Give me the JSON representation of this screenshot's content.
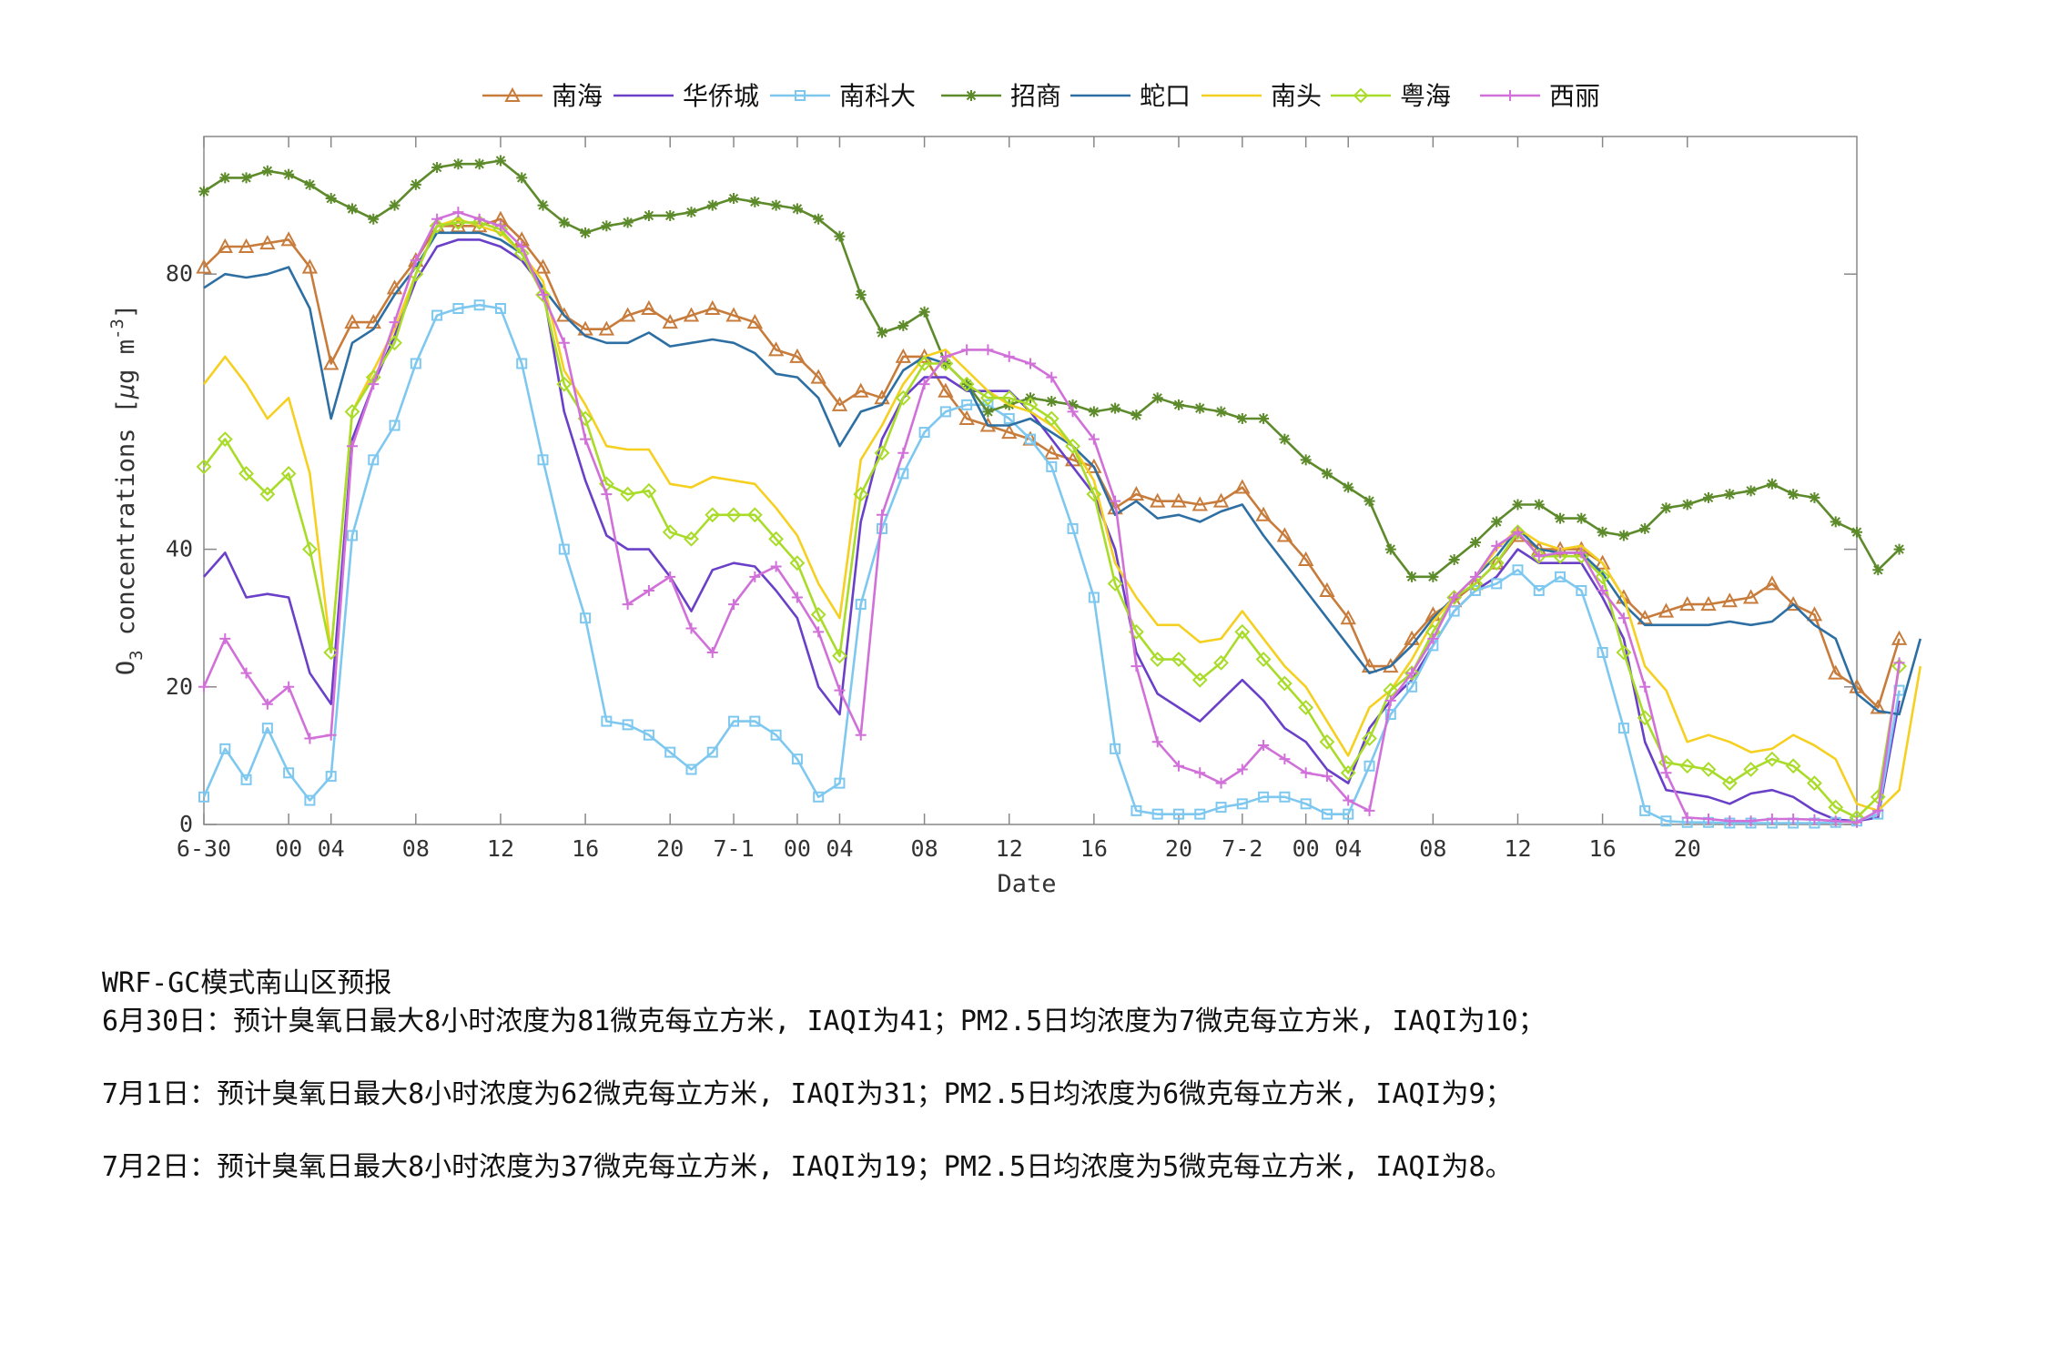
{
  "chart_data": {
    "type": "line",
    "title": "",
    "xlabel": "Date",
    "ylabel": "O3 concentrations [μg m-3]",
    "ylabel_parts": {
      "o": "O",
      "sub": "3",
      "mid": " concentrations [",
      "mu": "μ",
      "g": "g m",
      "sup": "-3",
      "end": "]"
    },
    "ylim": [
      0,
      100
    ],
    "yticks": [
      0,
      20,
      40,
      80
    ],
    "xlim": [
      0,
      78
    ],
    "xticks": [
      {
        "x": 0,
        "label": "6-30"
      },
      {
        "x": 4,
        "label": "00"
      },
      {
        "x": 6,
        "label": "04"
      },
      {
        "x": 10,
        "label": "08"
      },
      {
        "x": 14,
        "label": "12"
      },
      {
        "x": 18,
        "label": "16"
      },
      {
        "x": 22,
        "label": "20"
      },
      {
        "x": 25,
        "label": "7-1"
      },
      {
        "x": 28,
        "label": "00"
      },
      {
        "x": 30,
        "label": "04"
      },
      {
        "x": 34,
        "label": "08"
      },
      {
        "x": 38,
        "label": "12"
      },
      {
        "x": 42,
        "label": "16"
      },
      {
        "x": 46,
        "label": "20"
      },
      {
        "x": 49,
        "label": "7-2"
      },
      {
        "x": 52,
        "label": "00"
      },
      {
        "x": 54,
        "label": "04"
      },
      {
        "x": 58,
        "label": "08"
      },
      {
        "x": 62,
        "label": "12"
      },
      {
        "x": 66,
        "label": "16"
      },
      {
        "x": 70,
        "label": "20"
      }
    ],
    "grid": false,
    "legend_position": "top",
    "series": [
      {
        "name": "南海",
        "color": "#c87c3c",
        "marker": "triangle",
        "values": [
          81,
          84,
          84,
          84.5,
          85,
          81,
          67,
          73,
          73,
          78,
          82,
          87,
          87,
          87,
          88,
          85,
          81,
          74,
          72,
          72,
          74,
          75,
          73,
          74,
          75,
          74,
          73,
          69,
          68,
          65,
          61,
          63,
          62,
          68,
          68,
          63,
          59,
          58,
          57,
          56,
          54,
          53,
          52,
          46,
          48,
          47,
          47,
          46.5,
          47,
          49,
          45,
          42,
          38.5,
          34,
          30,
          23,
          23,
          27,
          30.5,
          32.5,
          35,
          38,
          42,
          40,
          40,
          40,
          38,
          33,
          30,
          31,
          32,
          32,
          32.5,
          33,
          35,
          32,
          30.5,
          22,
          20,
          17,
          27
        ]
      },
      {
        "name": "华侨城",
        "color": "#6a40c8",
        "marker": "none",
        "values": [
          36,
          39.5,
          33,
          33.5,
          33,
          22,
          17.5,
          56,
          64,
          71,
          79,
          84,
          85,
          85,
          84,
          82,
          78,
          60,
          50,
          42,
          40,
          40,
          36,
          31,
          37,
          38,
          37.5,
          34,
          30,
          20,
          16,
          44,
          56,
          62,
          65,
          65,
          63,
          63,
          63,
          60,
          56,
          52,
          48,
          40,
          25,
          19,
          17,
          15,
          18,
          21,
          18,
          14,
          12,
          8,
          6,
          14,
          18,
          21,
          26,
          31,
          34,
          36,
          40,
          38,
          38,
          38,
          33,
          27,
          12,
          5,
          4.5,
          4,
          3,
          4.5,
          5,
          4,
          2,
          0.7,
          0.5,
          1,
          18
        ]
      },
      {
        "name": "南科大",
        "color": "#7ec8f0",
        "marker": "square",
        "values": [
          4,
          11,
          6.5,
          14,
          7.5,
          3.5,
          7,
          42,
          53,
          58,
          67,
          74,
          75,
          75.5,
          75,
          67,
          53,
          40,
          30,
          15,
          14.5,
          13,
          10.5,
          8,
          10.5,
          15,
          15,
          13,
          9.5,
          4,
          6,
          32,
          43,
          51,
          57,
          60,
          61,
          61,
          59,
          56,
          52,
          43,
          33,
          11,
          2,
          1.5,
          1.5,
          1.5,
          2.5,
          3,
          4,
          4,
          3,
          1.5,
          1.5,
          8.5,
          16,
          20,
          26,
          31,
          34,
          35,
          37,
          34,
          36,
          34,
          25,
          14,
          2,
          0.5,
          0.3,
          0.3,
          0.2,
          0.2,
          0.2,
          0.2,
          0.2,
          0.3,
          0.5,
          1.5,
          19.5
        ]
      },
      {
        "name": "招商",
        "color": "#5d8a2a",
        "marker": "asterisk",
        "values": [
          92,
          94,
          94,
          95,
          94.5,
          93,
          91,
          89.5,
          88,
          90,
          93,
          95.5,
          96,
          96,
          96.5,
          94,
          90,
          87.5,
          86,
          87,
          87.5,
          88.5,
          88.5,
          89,
          90,
          91,
          90.5,
          90,
          89.5,
          88,
          85.5,
          77,
          71.5,
          72.5,
          74.5,
          67,
          64,
          60,
          61,
          62,
          61.5,
          61,
          60,
          60.5,
          59.5,
          62,
          61,
          60.5,
          60,
          59,
          59,
          56,
          53,
          51,
          49,
          47,
          40,
          36,
          36,
          38.5,
          41,
          44,
          46.5,
          46.5,
          44.5,
          44.5,
          42.5,
          42,
          43,
          46,
          46.5,
          47.5,
          48,
          48.5,
          49.5,
          48,
          47.5,
          44,
          42.5,
          37,
          40
        ]
      },
      {
        "name": "蛇口",
        "color": "#2d6fa3",
        "marker": "none",
        "values": [
          78,
          80,
          79.5,
          80,
          81,
          75,
          59,
          70,
          72,
          77,
          81,
          86,
          86,
          86,
          85,
          83,
          78,
          74,
          71,
          70,
          70,
          71.5,
          69.5,
          70,
          70.5,
          70,
          68.5,
          65.5,
          65,
          62,
          55,
          60,
          61,
          66,
          68,
          67,
          64,
          58,
          58,
          59,
          57,
          55,
          52,
          45,
          47,
          44.5,
          45,
          44,
          45.5,
          46.5,
          42,
          38,
          34,
          30,
          26,
          22,
          23,
          26,
          30,
          33,
          36,
          39,
          43,
          40,
          39.5,
          39.5,
          36.5,
          32,
          29,
          29,
          29,
          29,
          29.5,
          29,
          29.5,
          32,
          29,
          27,
          19,
          16.5,
          16,
          27
        ]
      },
      {
        "name": "南头",
        "color": "#f5d020",
        "marker": "none",
        "values": [
          64,
          68,
          64,
          59,
          62,
          51,
          25,
          60,
          66,
          72,
          80,
          87,
          88,
          87,
          86,
          83,
          79,
          66,
          61,
          55,
          54.5,
          54.5,
          49.5,
          49,
          50.5,
          50,
          49.5,
          46,
          42,
          35,
          30,
          53,
          58,
          64,
          68,
          69,
          66,
          63,
          61,
          60,
          58,
          55,
          50,
          38,
          33,
          29,
          29,
          26.5,
          27,
          31,
          27,
          23,
          20,
          15,
          10,
          17,
          19.5,
          24,
          29.5,
          33,
          36,
          40,
          43,
          41,
          40,
          40.5,
          38,
          33,
          23,
          19.5,
          12,
          13,
          12,
          10.5,
          11,
          13,
          11.5,
          9.5,
          3,
          2,
          5,
          23
        ]
      },
      {
        "name": "粤海",
        "color": "#a8dc28",
        "marker": "diamond",
        "values": [
          52,
          56,
          51,
          48,
          51,
          40,
          25,
          60,
          65,
          70,
          80,
          87,
          87.5,
          87.5,
          86.5,
          83,
          77,
          64,
          59,
          49.5,
          48,
          48.5,
          42.5,
          41.5,
          45,
          45,
          45,
          41.5,
          38,
          30.5,
          24.5,
          48,
          54,
          62,
          67,
          67,
          64,
          62,
          62,
          61,
          59,
          55,
          48,
          35,
          28,
          24,
          24,
          21,
          23.5,
          28,
          24,
          20.5,
          17,
          12,
          7.5,
          12.5,
          19.5,
          22,
          28,
          33,
          35,
          38,
          42.5,
          39,
          39,
          39,
          36,
          25,
          15.5,
          9,
          8.5,
          8,
          6,
          8,
          9.5,
          8.5,
          6,
          2.5,
          1,
          4,
          23
        ]
      },
      {
        "name": "西丽",
        "color": "#d070d8",
        "marker": "plus",
        "values": [
          20,
          27,
          22,
          17.5,
          20,
          12.5,
          13,
          55,
          64,
          73,
          82,
          88,
          89,
          88,
          87,
          84,
          77,
          70,
          56,
          48,
          32,
          34,
          36,
          28.5,
          25,
          32,
          36,
          37.5,
          33,
          28,
          19.5,
          13,
          45,
          54,
          64,
          68,
          69,
          69,
          68,
          67,
          65,
          60,
          56,
          47,
          23,
          12,
          8.5,
          7.5,
          6,
          8,
          11.5,
          9.5,
          7.5,
          7,
          3.5,
          2,
          18,
          22,
          27,
          33,
          36,
          40.5,
          42.5,
          39,
          39.5,
          39.5,
          34,
          30,
          20,
          7.5,
          1,
          0.8,
          0.5,
          0.5,
          0.8,
          0.8,
          0.7,
          0.5,
          0.3,
          2,
          23.5
        ]
      }
    ]
  },
  "notes": {
    "title": "WRF-GC模式南山区预报",
    "line1": "6月30日：预计臭氧日最大8小时浓度为81微克每立方米, IAQI为41；PM2.5日均浓度为7微克每立方米, IAQI为10；",
    "line2": "7月1日：预计臭氧日最大8小时浓度为62微克每立方米, IAQI为31；PM2.5日均浓度为6微克每立方米, IAQI为9；",
    "line3": "7月2日：预计臭氧日最大8小时浓度为37微克每立方米, IAQI为19；PM2.5日均浓度为5微克每立方米, IAQI为8。"
  }
}
